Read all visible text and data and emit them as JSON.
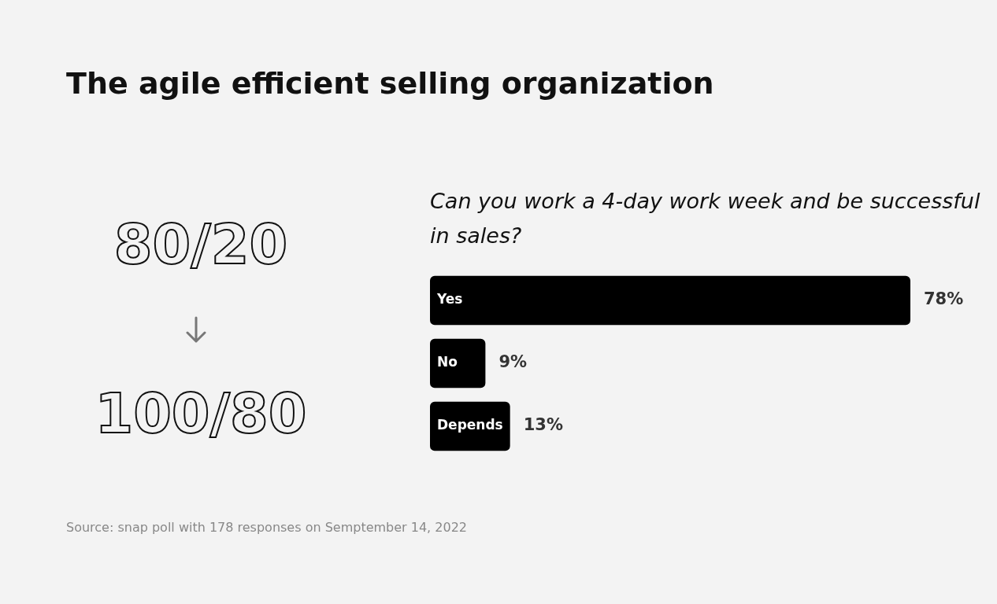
{
  "chart_data": {
    "type": "bar",
    "orientation": "horizontal",
    "title": "The agile efficient selling organization",
    "subtitle": "Can you work a 4-day work week and be successful in sales?",
    "categories": [
      "Yes",
      "No",
      "Depends"
    ],
    "values": [
      78,
      9,
      13
    ],
    "color": "#000000",
    "value_labels": [
      "78%",
      "9%",
      "13%"
    ],
    "tick_labels": false,
    "annotations": [
      "80/20",
      "100/80",
      "Source: snap poll with 178 responses on Semptember 14, 2022"
    ]
  }
}
